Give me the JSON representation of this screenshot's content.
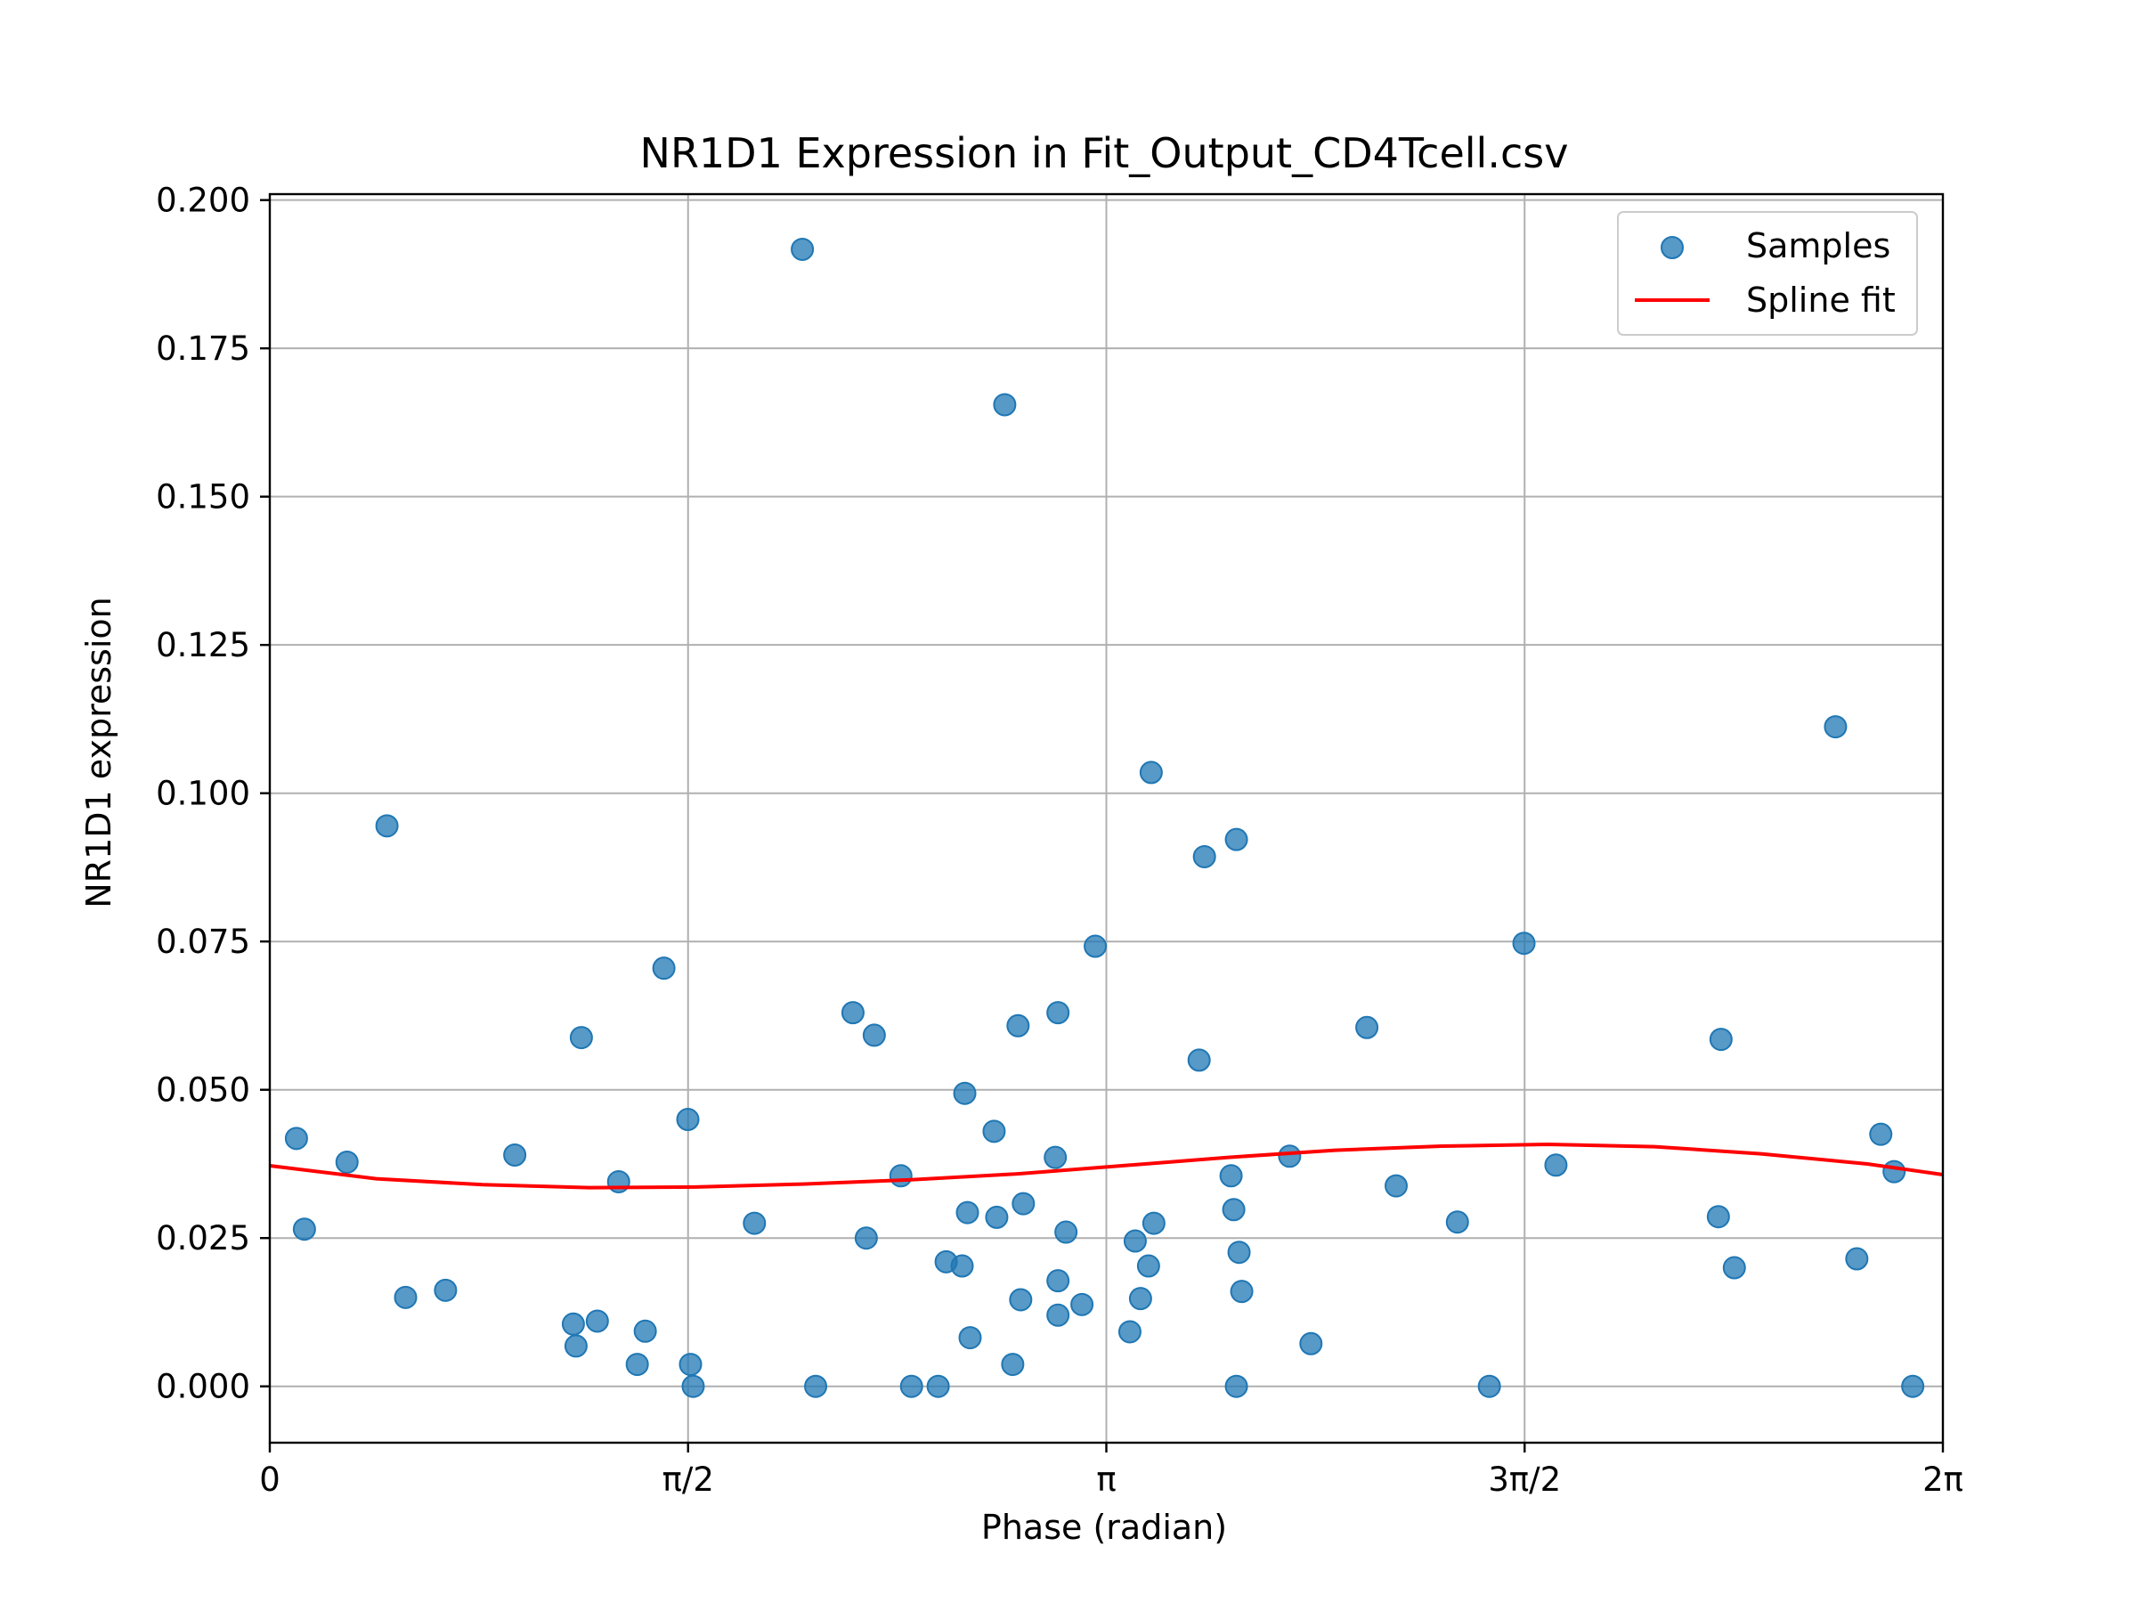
{
  "chart_data": {
    "type": "scatter",
    "title": "NR1D1 Expression in Fit_Output_CD4Tcell.csv",
    "xlabel": "Phase (radian)",
    "ylabel": "NR1D1 expression",
    "xlim": [
      0,
      6.2832
    ],
    "ylim": [
      -0.0095,
      0.201
    ],
    "x_ticks": [
      {
        "value": 0,
        "label": "0"
      },
      {
        "value": 1.5708,
        "label": "π/2"
      },
      {
        "value": 3.1416,
        "label": "π"
      },
      {
        "value": 4.7124,
        "label": "3π/2"
      },
      {
        "value": 6.2832,
        "label": "2π"
      }
    ],
    "y_ticks": [
      {
        "value": 0.0,
        "label": "0.000"
      },
      {
        "value": 0.025,
        "label": "0.025"
      },
      {
        "value": 0.05,
        "label": "0.050"
      },
      {
        "value": 0.075,
        "label": "0.075"
      },
      {
        "value": 0.1,
        "label": "0.100"
      },
      {
        "value": 0.125,
        "label": "0.125"
      },
      {
        "value": 0.15,
        "label": "0.150"
      },
      {
        "value": 0.175,
        "label": "0.175"
      },
      {
        "value": 0.2,
        "label": "0.200"
      }
    ],
    "grid": true,
    "legend": "top-right",
    "legend_entries": [
      "Samples",
      "Spline fit"
    ],
    "colors": {
      "samples": "#1f77b4",
      "spline": "#ff0000"
    },
    "series": [
      {
        "name": "Samples",
        "type": "scatter",
        "points": [
          {
            "x": 0.1,
            "y": 0.0418
          },
          {
            "x": 0.13,
            "y": 0.0265
          },
          {
            "x": 0.29,
            "y": 0.0378
          },
          {
            "x": 0.44,
            "y": 0.0945
          },
          {
            "x": 0.51,
            "y": 0.015
          },
          {
            "x": 0.66,
            "y": 0.0162
          },
          {
            "x": 0.92,
            "y": 0.039
          },
          {
            "x": 1.14,
            "y": 0.0105
          },
          {
            "x": 1.15,
            "y": 0.0068
          },
          {
            "x": 1.17,
            "y": 0.0588
          },
          {
            "x": 1.23,
            "y": 0.011
          },
          {
            "x": 1.31,
            "y": 0.0345
          },
          {
            "x": 1.38,
            "y": 0.0037
          },
          {
            "x": 1.41,
            "y": 0.0093
          },
          {
            "x": 1.48,
            "y": 0.0705
          },
          {
            "x": 1.57,
            "y": 0.045
          },
          {
            "x": 1.58,
            "y": 0.0037
          },
          {
            "x": 1.59,
            "y": 0.0
          },
          {
            "x": 1.82,
            "y": 0.0275
          },
          {
            "x": 2.0,
            "y": 0.1917
          },
          {
            "x": 2.05,
            "y": 0.0
          },
          {
            "x": 2.19,
            "y": 0.063
          },
          {
            "x": 2.24,
            "y": 0.025
          },
          {
            "x": 2.27,
            "y": 0.0592
          },
          {
            "x": 2.37,
            "y": 0.0355
          },
          {
            "x": 2.41,
            "y": 0.0
          },
          {
            "x": 2.51,
            "y": 0.0
          },
          {
            "x": 2.54,
            "y": 0.021
          },
          {
            "x": 2.6,
            "y": 0.0203
          },
          {
            "x": 2.61,
            "y": 0.0494
          },
          {
            "x": 2.62,
            "y": 0.0293
          },
          {
            "x": 2.63,
            "y": 0.0082
          },
          {
            "x": 2.72,
            "y": 0.043
          },
          {
            "x": 2.73,
            "y": 0.0285
          },
          {
            "x": 2.76,
            "y": 0.1655
          },
          {
            "x": 2.79,
            "y": 0.0037
          },
          {
            "x": 2.81,
            "y": 0.0608
          },
          {
            "x": 2.82,
            "y": 0.0146
          },
          {
            "x": 2.83,
            "y": 0.0308
          },
          {
            "x": 2.95,
            "y": 0.0386
          },
          {
            "x": 2.96,
            "y": 0.063
          },
          {
            "x": 2.96,
            "y": 0.012
          },
          {
            "x": 2.96,
            "y": 0.0178
          },
          {
            "x": 2.99,
            "y": 0.026
          },
          {
            "x": 3.05,
            "y": 0.0138
          },
          {
            "x": 3.1,
            "y": 0.0742
          },
          {
            "x": 3.23,
            "y": 0.0092
          },
          {
            "x": 3.25,
            "y": 0.0245
          },
          {
            "x": 3.27,
            "y": 0.0148
          },
          {
            "x": 3.3,
            "y": 0.0203
          },
          {
            "x": 3.31,
            "y": 0.1035
          },
          {
            "x": 3.32,
            "y": 0.0275
          },
          {
            "x": 3.49,
            "y": 0.055
          },
          {
            "x": 3.51,
            "y": 0.0893
          },
          {
            "x": 3.61,
            "y": 0.0355
          },
          {
            "x": 3.62,
            "y": 0.0298
          },
          {
            "x": 3.63,
            "y": 0.0
          },
          {
            "x": 3.63,
            "y": 0.0922
          },
          {
            "x": 3.64,
            "y": 0.0226
          },
          {
            "x": 3.65,
            "y": 0.016
          },
          {
            "x": 3.83,
            "y": 0.0388
          },
          {
            "x": 3.91,
            "y": 0.0072
          },
          {
            "x": 4.12,
            "y": 0.0605
          },
          {
            "x": 4.23,
            "y": 0.0338
          },
          {
            "x": 4.46,
            "y": 0.0277
          },
          {
            "x": 4.58,
            "y": 0.0
          },
          {
            "x": 4.71,
            "y": 0.0747
          },
          {
            "x": 4.83,
            "y": 0.0373
          },
          {
            "x": 5.44,
            "y": 0.0286
          },
          {
            "x": 5.45,
            "y": 0.0585
          },
          {
            "x": 5.5,
            "y": 0.02
          },
          {
            "x": 5.88,
            "y": 0.1112
          },
          {
            "x": 5.96,
            "y": 0.0215
          },
          {
            "x": 6.05,
            "y": 0.0425
          },
          {
            "x": 6.1,
            "y": 0.0362
          },
          {
            "x": 6.17,
            "y": 0.0
          }
        ]
      },
      {
        "name": "Spline fit",
        "type": "line",
        "points": [
          {
            "x": 0.0,
            "y": 0.0372
          },
          {
            "x": 0.4,
            "y": 0.035
          },
          {
            "x": 0.8,
            "y": 0.034
          },
          {
            "x": 1.2,
            "y": 0.0335
          },
          {
            "x": 1.6,
            "y": 0.0336
          },
          {
            "x": 2.0,
            "y": 0.0341
          },
          {
            "x": 2.4,
            "y": 0.0348
          },
          {
            "x": 2.8,
            "y": 0.0358
          },
          {
            "x": 3.2,
            "y": 0.0372
          },
          {
            "x": 3.6,
            "y": 0.0386
          },
          {
            "x": 4.0,
            "y": 0.0398
          },
          {
            "x": 4.4,
            "y": 0.0405
          },
          {
            "x": 4.8,
            "y": 0.0408
          },
          {
            "x": 5.2,
            "y": 0.0404
          },
          {
            "x": 5.6,
            "y": 0.0392
          },
          {
            "x": 6.0,
            "y": 0.0375
          },
          {
            "x": 6.2832,
            "y": 0.0357
          }
        ]
      }
    ]
  }
}
